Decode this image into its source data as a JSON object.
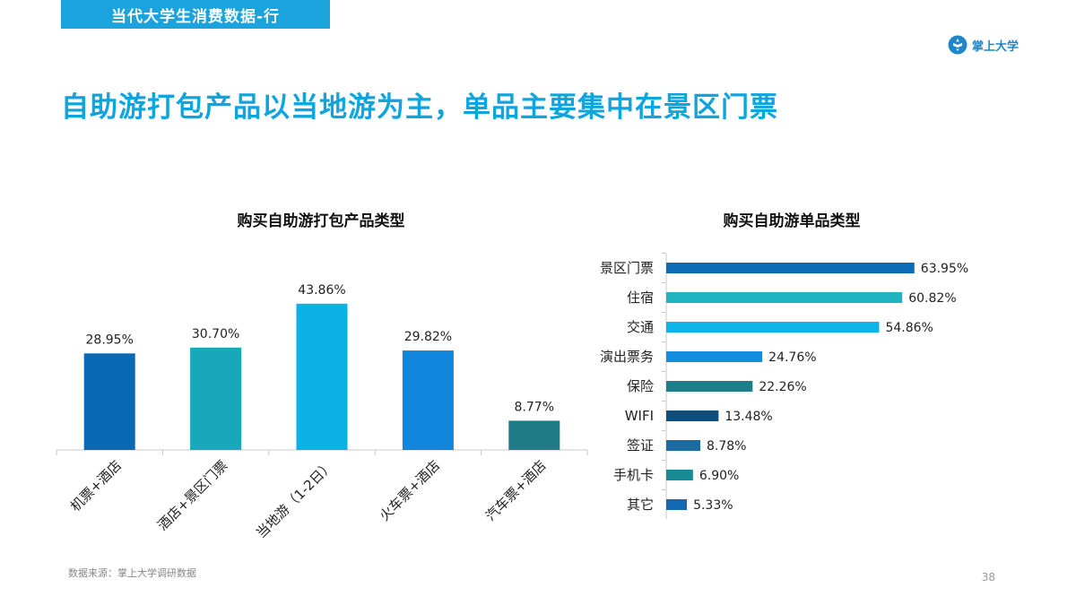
{
  "header": {
    "section_tag": "当代大学生消费数据-行",
    "brand": "掌上大学",
    "headline": "自助游打包产品以当地游为主，单品主要集中在景区门票"
  },
  "chart_data": [
    {
      "type": "bar",
      "title": "购买自助游打包产品类型",
      "categories": [
        "机票+酒店",
        "酒店+景区门票",
        "当地游（1-2日）",
        "火车票+酒店",
        "汽车票+酒店"
      ],
      "values": [
        28.95,
        30.7,
        43.86,
        29.82,
        8.77
      ],
      "value_labels": [
        "28.95%",
        "30.70%",
        "43.86%",
        "29.82%",
        "8.77%"
      ],
      "colors": [
        "#0a69b4",
        "#17a9b9",
        "#0cb1e6",
        "#1285dc",
        "#1f7b86"
      ],
      "ylim": [
        0,
        50
      ],
      "xlabel": "",
      "ylabel": "",
      "grid": false,
      "tick_rotation": "45deg"
    },
    {
      "type": "bar",
      "orientation": "horizontal",
      "title": "购买自助游单品类型",
      "categories": [
        "景区门票",
        "住宿",
        "交通",
        "演出票务",
        "保险",
        "WIFI",
        "签证",
        "手机卡",
        "其它"
      ],
      "values": [
        63.95,
        60.82,
        54.86,
        24.76,
        22.26,
        13.48,
        8.78,
        6.9,
        5.33
      ],
      "value_labels": [
        "63.95%",
        "60.82%",
        "54.86%",
        "24.76%",
        "22.26%",
        "13.48%",
        "8.78%",
        "6.90%",
        "5.33%"
      ],
      "colors": [
        "#0b6cb5",
        "#21b3c0",
        "#0cb4e8",
        "#128de0",
        "#1f7e88",
        "#0f4d7d",
        "#1a6aa3",
        "#178a95",
        "#1469b4"
      ],
      "xlim": [
        0,
        64
      ],
      "xlabel": "",
      "ylabel": "",
      "grid": false
    }
  ],
  "footer": {
    "source": "数据来源：掌上大学调研数据",
    "page_number": "38"
  }
}
